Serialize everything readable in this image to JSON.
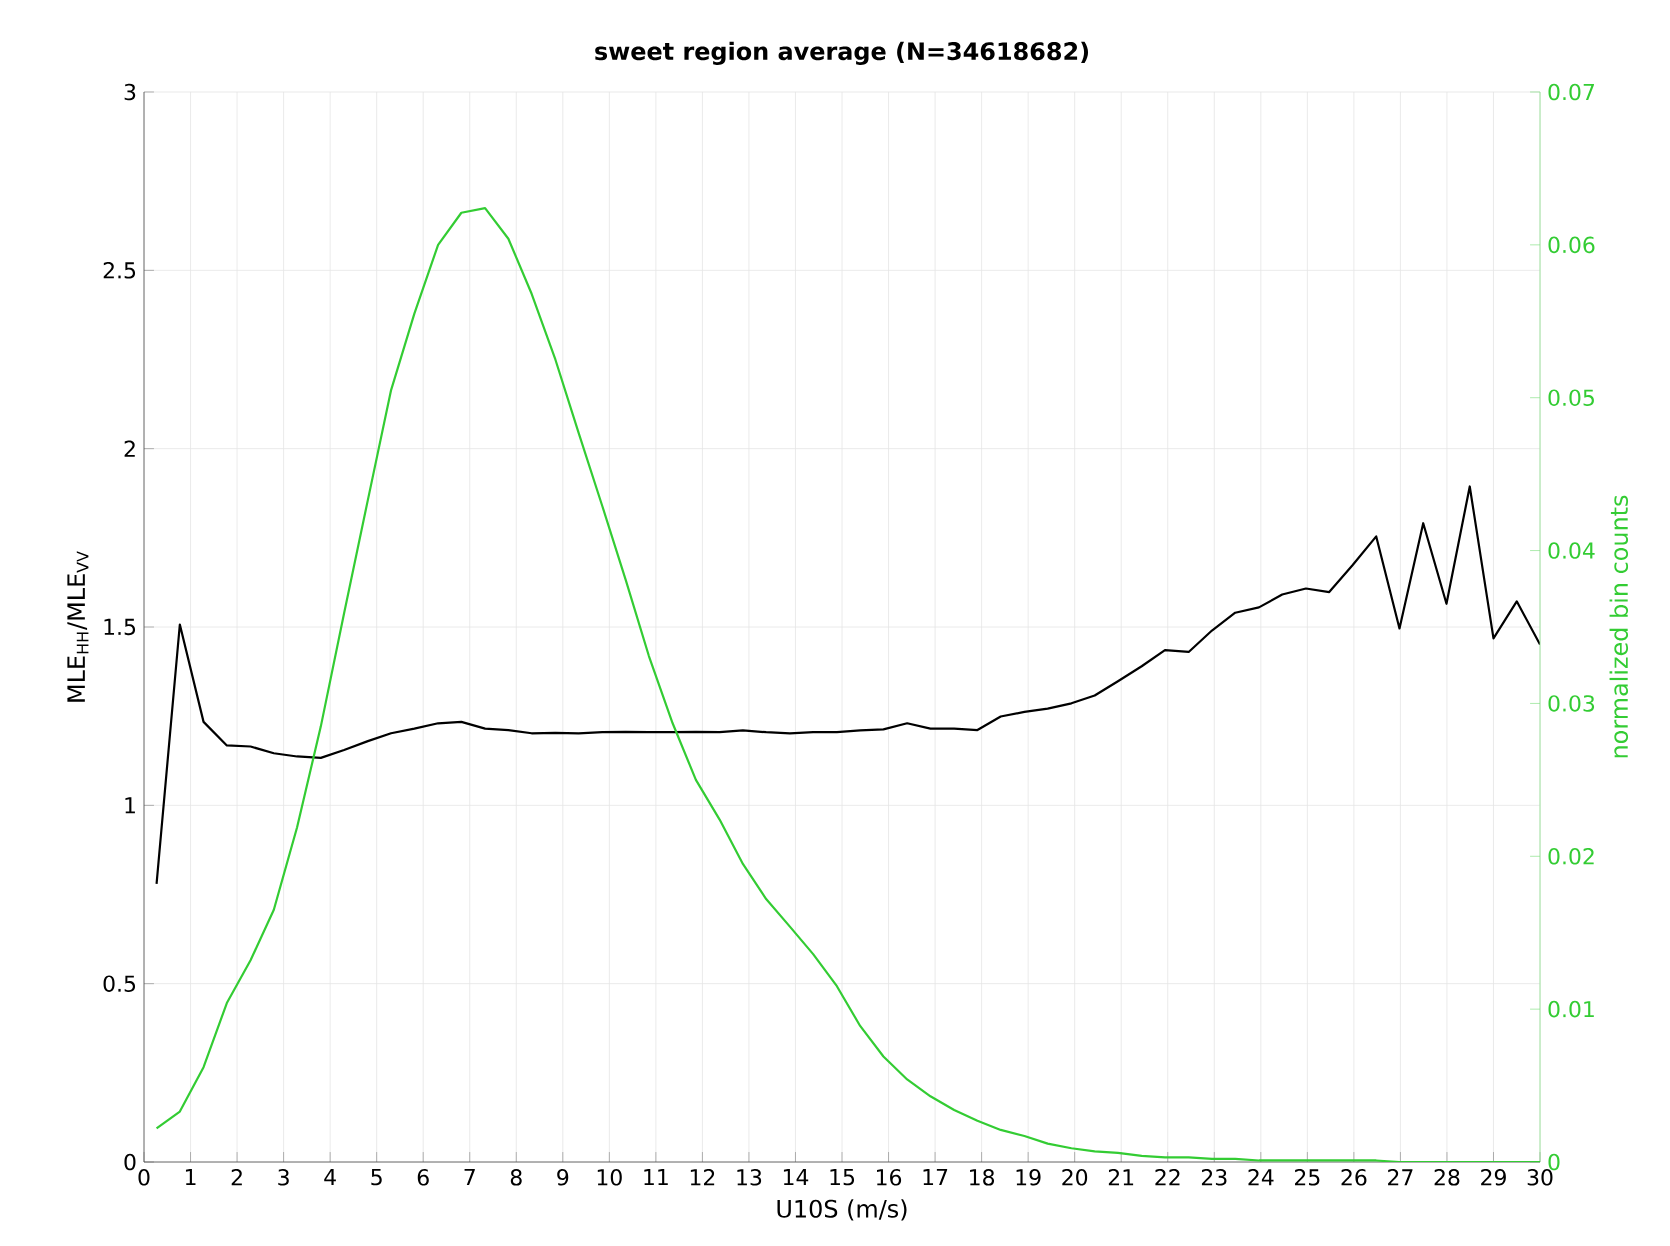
{
  "chart_data": {
    "type": "line",
    "title": "**sweet region average (N=34618682)**",
    "xlabel": "U10S (m/s)",
    "ylabel": "MLE$_{HH}$/MLE$_{VV}$",
    "y2label": "normalized bin counts",
    "xlim": [
      0,
      30
    ],
    "xticks": [
      0,
      1,
      2,
      3,
      4,
      5,
      6,
      7,
      8,
      9,
      10,
      11,
      12,
      13,
      14,
      15,
      16,
      17,
      18,
      19,
      20,
      21,
      22,
      23,
      24,
      25,
      26,
      27,
      28,
      29,
      30
    ],
    "ylim": [
      0,
      3
    ],
    "yticks": [
      0,
      0.5,
      1,
      1.5,
      2,
      2.5,
      3
    ],
    "y2lim": [
      0,
      0.07
    ],
    "y2ticks": [
      0,
      0.01,
      0.02,
      0.03,
      0.04,
      0.05,
      0.06,
      0.07
    ],
    "grid": true,
    "x": [
      0.27,
      0.77,
      1.28,
      1.78,
      2.29,
      2.79,
      3.29,
      3.8,
      4.3,
      4.81,
      5.31,
      5.81,
      6.32,
      6.82,
      7.33,
      7.83,
      8.33,
      8.84,
      9.34,
      9.85,
      10.35,
      10.85,
      11.36,
      11.86,
      12.37,
      12.87,
      13.37,
      13.88,
      14.38,
      14.89,
      15.39,
      15.89,
      16.4,
      16.9,
      17.41,
      17.91,
      18.41,
      18.92,
      19.42,
      19.93,
      20.43,
      20.93,
      21.44,
      21.94,
      22.45,
      22.95,
      23.45,
      23.96,
      24.46,
      24.97,
      25.47,
      25.97,
      26.48,
      26.98,
      27.49,
      27.99,
      28.49,
      29.0,
      29.5,
      30.0
    ],
    "series": [
      {
        "color": "#000000",
        "axis": "y",
        "values": [
          0.78,
          1.507,
          1.234,
          1.168,
          1.165,
          1.146,
          1.137,
          1.133,
          1.155,
          1.18,
          1.202,
          1.215,
          1.23,
          1.234,
          1.215,
          1.211,
          1.202,
          1.203,
          1.202,
          1.205,
          1.206,
          1.205,
          1.205,
          1.206,
          1.205,
          1.21,
          1.205,
          1.202,
          1.205,
          1.205,
          1.21,
          1.213,
          1.23,
          1.215,
          1.215,
          1.211,
          1.249,
          1.262,
          1.271,
          1.286,
          1.308,
          1.348,
          1.39,
          1.435,
          1.43,
          1.49,
          1.54,
          1.555,
          1.591,
          1.608,
          1.598,
          1.673,
          1.754,
          1.496,
          1.791,
          1.565,
          1.894,
          1.468,
          1.572,
          1.451
        ]
      },
      {
        "color": "#33cc33",
        "axis": "y2",
        "values": [
          0.0022,
          0.0033,
          0.0062,
          0.0104,
          0.0132,
          0.0165,
          0.0219,
          0.0285,
          0.0359,
          0.0433,
          0.0505,
          0.0555,
          0.06,
          0.0621,
          0.0624,
          0.0604,
          0.0568,
          0.0525,
          0.0477,
          0.0429,
          0.0381,
          0.0331,
          0.0287,
          0.025,
          0.0224,
          0.0195,
          0.0172,
          0.0154,
          0.0136,
          0.0115,
          0.0089,
          0.0069,
          0.0054,
          0.0043,
          0.0034,
          0.0027,
          0.0021,
          0.0017,
          0.0012,
          0.0009,
          0.0007,
          0.0006,
          0.0004,
          0.0003,
          0.0003,
          0.0002,
          0.0002,
          0.0001,
          0.0001,
          0.0001,
          0.0001,
          0.0001,
          0.0001,
          0,
          0,
          0,
          0,
          0,
          0,
          0
        ]
      }
    ]
  }
}
